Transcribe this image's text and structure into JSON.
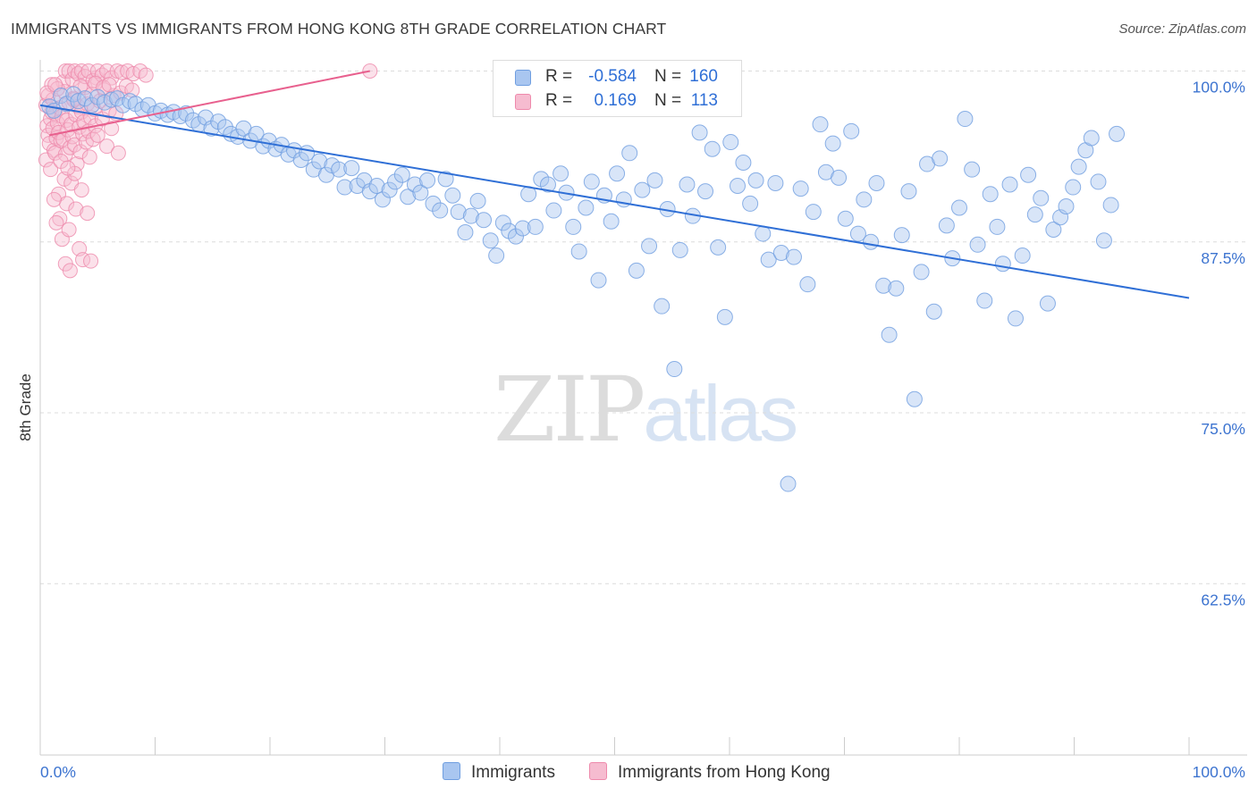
{
  "title": "IMMIGRANTS VS IMMIGRANTS FROM HONG KONG 8TH GRADE CORRELATION CHART",
  "source": "Source: ZipAtlas.com",
  "watermark": {
    "part1": "ZIP",
    "part2": "atlas"
  },
  "colors": {
    "blue_fill": "#a9c6f0",
    "blue_stroke": "#6f9ee0",
    "blue_line": "#2f6fd6",
    "pink_fill": "#f6bcd0",
    "pink_stroke": "#ee89ab",
    "pink_line": "#e8608e",
    "tick_text": "#3d74d0",
    "grid": "#dcdcdc"
  },
  "legend": {
    "rows": [
      {
        "r_label": "R =",
        "r_value": "-0.584",
        "n_label": "N =",
        "n_value": "160"
      },
      {
        "r_label": "R =",
        "r_value": "0.169",
        "n_label": "N =",
        "n_value": "113"
      }
    ]
  },
  "bottom_legend": [
    "Immigrants",
    "Immigrants from Hong Kong"
  ],
  "chart_data": {
    "type": "scatter",
    "xlabel": "",
    "ylabel": "8th Grade",
    "xlim": [
      0,
      100
    ],
    "ylim": [
      50,
      100
    ],
    "x_tick_labels": [
      "0.0%",
      "100.0%"
    ],
    "y_ticks": [
      100,
      87.5,
      75,
      62.5
    ],
    "y_tick_labels": [
      "100.0%",
      "87.5%",
      "75.0%",
      "62.5%"
    ],
    "series": [
      {
        "name": "Immigrants",
        "color": "#a9c6f0",
        "r": -0.584,
        "n": 160,
        "trendline": {
          "x": [
            0,
            100
          ],
          "y": [
            97.5,
            83.4
          ]
        },
        "points": [
          [
            0.8,
            97.4
          ],
          [
            1.2,
            97.1
          ],
          [
            1.8,
            98.2
          ],
          [
            2.3,
            97.6
          ],
          [
            2.9,
            98.3
          ],
          [
            3.3,
            97.8
          ],
          [
            3.9,
            98.0
          ],
          [
            4.5,
            97.5
          ],
          [
            5.0,
            98.1
          ],
          [
            5.6,
            97.7
          ],
          [
            6.2,
            97.9
          ],
          [
            6.7,
            98.0
          ],
          [
            7.2,
            97.5
          ],
          [
            7.8,
            97.8
          ],
          [
            8.3,
            97.6
          ],
          [
            8.9,
            97.2
          ],
          [
            9.4,
            97.5
          ],
          [
            10.0,
            96.9
          ],
          [
            10.5,
            97.1
          ],
          [
            11.1,
            96.8
          ],
          [
            11.6,
            97.0
          ],
          [
            12.2,
            96.7
          ],
          [
            12.7,
            96.9
          ],
          [
            13.3,
            96.4
          ],
          [
            13.8,
            96.1
          ],
          [
            14.4,
            96.6
          ],
          [
            14.9,
            95.8
          ],
          [
            15.5,
            96.3
          ],
          [
            16.1,
            95.9
          ],
          [
            16.6,
            95.4
          ],
          [
            17.2,
            95.2
          ],
          [
            17.7,
            95.8
          ],
          [
            18.3,
            94.9
          ],
          [
            18.8,
            95.4
          ],
          [
            19.4,
            94.5
          ],
          [
            19.9,
            94.9
          ],
          [
            20.5,
            94.3
          ],
          [
            21.0,
            94.6
          ],
          [
            21.6,
            93.9
          ],
          [
            22.1,
            94.2
          ],
          [
            22.7,
            93.5
          ],
          [
            23.2,
            94.0
          ],
          [
            23.8,
            92.8
          ],
          [
            24.3,
            93.4
          ],
          [
            24.9,
            92.4
          ],
          [
            25.4,
            93.1
          ],
          [
            26.0,
            92.8
          ],
          [
            26.5,
            91.5
          ],
          [
            27.1,
            92.9
          ],
          [
            27.6,
            91.6
          ],
          [
            28.2,
            92.0
          ],
          [
            28.7,
            91.2
          ],
          [
            29.3,
            91.6
          ],
          [
            29.8,
            90.6
          ],
          [
            30.4,
            91.3
          ],
          [
            30.9,
            91.9
          ],
          [
            31.5,
            92.4
          ],
          [
            32.0,
            90.8
          ],
          [
            32.6,
            91.7
          ],
          [
            33.1,
            91.1
          ],
          [
            33.7,
            92.0
          ],
          [
            34.2,
            90.3
          ],
          [
            34.8,
            89.8
          ],
          [
            35.3,
            92.1
          ],
          [
            35.9,
            90.9
          ],
          [
            36.4,
            89.7
          ],
          [
            37.0,
            88.2
          ],
          [
            37.5,
            89.4
          ],
          [
            38.1,
            90.5
          ],
          [
            38.6,
            89.1
          ],
          [
            39.2,
            87.6
          ],
          [
            39.7,
            86.5
          ],
          [
            40.3,
            88.9
          ],
          [
            40.8,
            88.3
          ],
          [
            41.4,
            87.9
          ],
          [
            42.0,
            88.5
          ],
          [
            42.5,
            91.0
          ],
          [
            43.1,
            88.6
          ],
          [
            43.6,
            92.1
          ],
          [
            44.2,
            91.7
          ],
          [
            44.7,
            89.8
          ],
          [
            45.3,
            92.5
          ],
          [
            45.8,
            91.1
          ],
          [
            46.4,
            88.6
          ],
          [
            46.9,
            86.8
          ],
          [
            47.5,
            90.0
          ],
          [
            48.0,
            91.9
          ],
          [
            48.6,
            84.7
          ],
          [
            49.1,
            90.9
          ],
          [
            49.7,
            89.0
          ],
          [
            50.2,
            92.5
          ],
          [
            50.8,
            90.6
          ],
          [
            51.3,
            94.0
          ],
          [
            51.9,
            85.4
          ],
          [
            52.4,
            91.3
          ],
          [
            53.0,
            87.2
          ],
          [
            53.5,
            92.0
          ],
          [
            54.1,
            82.8
          ],
          [
            54.6,
            89.9
          ],
          [
            55.2,
            78.2
          ],
          [
            55.7,
            86.9
          ],
          [
            56.3,
            91.7
          ],
          [
            56.8,
            89.4
          ],
          [
            57.4,
            95.5
          ],
          [
            57.9,
            91.2
          ],
          [
            58.5,
            94.3
          ],
          [
            59.0,
            87.1
          ],
          [
            59.6,
            82.0
          ],
          [
            60.1,
            94.8
          ],
          [
            60.7,
            91.6
          ],
          [
            61.2,
            93.3
          ],
          [
            61.8,
            90.3
          ],
          [
            62.3,
            92.0
          ],
          [
            62.9,
            88.1
          ],
          [
            63.4,
            86.2
          ],
          [
            64.0,
            91.8
          ],
          [
            64.5,
            86.7
          ],
          [
            65.1,
            69.8
          ],
          [
            65.6,
            86.4
          ],
          [
            66.2,
            91.4
          ],
          [
            66.8,
            84.4
          ],
          [
            67.3,
            89.7
          ],
          [
            67.9,
            96.1
          ],
          [
            68.4,
            92.6
          ],
          [
            69.0,
            94.7
          ],
          [
            69.5,
            92.2
          ],
          [
            70.1,
            89.2
          ],
          [
            70.6,
            95.6
          ],
          [
            71.2,
            88.1
          ],
          [
            71.7,
            90.6
          ],
          [
            72.3,
            87.5
          ],
          [
            72.8,
            91.8
          ],
          [
            73.4,
            84.3
          ],
          [
            73.9,
            80.7
          ],
          [
            74.5,
            84.1
          ],
          [
            75.0,
            88.0
          ],
          [
            75.6,
            91.2
          ],
          [
            76.1,
            76.0
          ],
          [
            76.7,
            85.3
          ],
          [
            77.2,
            93.2
          ],
          [
            77.8,
            82.4
          ],
          [
            78.3,
            93.6
          ],
          [
            78.9,
            88.7
          ],
          [
            79.4,
            86.3
          ],
          [
            80.0,
            90.0
          ],
          [
            80.5,
            96.5
          ],
          [
            81.1,
            92.8
          ],
          [
            81.6,
            87.3
          ],
          [
            82.2,
            83.2
          ],
          [
            82.7,
            91.0
          ],
          [
            83.3,
            88.6
          ],
          [
            83.8,
            85.9
          ],
          [
            84.4,
            91.7
          ],
          [
            84.9,
            81.9
          ],
          [
            85.5,
            86.5
          ],
          [
            86.0,
            92.4
          ],
          [
            86.6,
            89.5
          ],
          [
            87.1,
            90.7
          ],
          [
            87.7,
            83.0
          ],
          [
            88.2,
            88.4
          ],
          [
            88.8,
            89.3
          ],
          [
            89.3,
            90.1
          ],
          [
            89.9,
            91.5
          ],
          [
            90.4,
            93.0
          ],
          [
            91.0,
            94.2
          ],
          [
            91.5,
            95.1
          ],
          [
            92.1,
            91.9
          ],
          [
            92.6,
            87.6
          ],
          [
            93.2,
            90.2
          ],
          [
            93.7,
            95.4
          ]
        ]
      },
      {
        "name": "Immigrants from Hong Kong",
        "color": "#f6bcd0",
        "r": 0.169,
        "n": 113,
        "trendline": {
          "x": [
            0.8,
            28.7
          ],
          "y": [
            95.3,
            100.0
          ]
        },
        "points": [
          [
            0.5,
            97.5
          ],
          [
            0.6,
            96.0
          ],
          [
            0.7,
            95.3
          ],
          [
            0.8,
            94.7
          ],
          [
            0.9,
            96.5
          ],
          [
            1.0,
            97.0
          ],
          [
            1.1,
            95.8
          ],
          [
            1.2,
            94.2
          ],
          [
            1.3,
            96.9
          ],
          [
            1.4,
            95.1
          ],
          [
            0.5,
            93.5
          ],
          [
            0.7,
            98.2
          ],
          [
            0.9,
            92.8
          ],
          [
            1.1,
            97.9
          ],
          [
            1.3,
            94.0
          ],
          [
            1.5,
            96.2
          ],
          [
            1.6,
            95.5
          ],
          [
            1.7,
            97.3
          ],
          [
            1.8,
            94.9
          ],
          [
            1.9,
            96.7
          ],
          [
            2.0,
            95.0
          ],
          [
            2.1,
            98.5
          ],
          [
            2.2,
            93.9
          ],
          [
            2.3,
            96.4
          ],
          [
            2.4,
            95.7
          ],
          [
            2.5,
            97.7
          ],
          [
            2.6,
            94.4
          ],
          [
            2.7,
            96.1
          ],
          [
            2.8,
            95.2
          ],
          [
            2.9,
            98.0
          ],
          [
            3.0,
            94.6
          ],
          [
            3.1,
            96.8
          ],
          [
            3.2,
            93.2
          ],
          [
            3.3,
            97.4
          ],
          [
            3.4,
            95.9
          ],
          [
            3.5,
            94.1
          ],
          [
            3.6,
            97.0
          ],
          [
            3.7,
            95.4
          ],
          [
            3.8,
            96.3
          ],
          [
            3.9,
            98.8
          ],
          [
            4.0,
            94.8
          ],
          [
            4.1,
            97.6
          ],
          [
            4.2,
            95.6
          ],
          [
            4.3,
            93.7
          ],
          [
            4.4,
            96.6
          ],
          [
            4.5,
            98.3
          ],
          [
            4.6,
            95.0
          ],
          [
            4.7,
            97.2
          ],
          [
            4.8,
            96.0
          ],
          [
            4.9,
            99.5
          ],
          [
            1.6,
            91.0
          ],
          [
            1.7,
            89.2
          ],
          [
            1.9,
            87.7
          ],
          [
            2.1,
            92.1
          ],
          [
            2.3,
            90.3
          ],
          [
            2.5,
            88.4
          ],
          [
            2.7,
            91.8
          ],
          [
            3.1,
            89.9
          ],
          [
            3.4,
            87.0
          ],
          [
            3.7,
            86.2
          ],
          [
            1.2,
            90.6
          ],
          [
            1.4,
            88.9
          ],
          [
            2.2,
            85.9
          ],
          [
            2.6,
            85.4
          ],
          [
            3.0,
            92.5
          ],
          [
            3.6,
            91.3
          ],
          [
            4.1,
            89.6
          ],
          [
            4.4,
            86.1
          ],
          [
            1.8,
            93.4
          ],
          [
            2.4,
            92.9
          ],
          [
            5.0,
            95.3
          ],
          [
            5.2,
            97.8
          ],
          [
            5.4,
            96.5
          ],
          [
            5.6,
            98.6
          ],
          [
            5.8,
            94.5
          ],
          [
            6.0,
            97.1
          ],
          [
            6.2,
            95.8
          ],
          [
            6.4,
            98.2
          ],
          [
            6.6,
            96.9
          ],
          [
            6.8,
            94.0
          ],
          [
            2.0,
            99.2
          ],
          [
            2.2,
            100.0
          ],
          [
            2.5,
            100.0
          ],
          [
            2.8,
            99.4
          ],
          [
            3.0,
            100.0
          ],
          [
            3.3,
            99.8
          ],
          [
            3.6,
            100.0
          ],
          [
            3.9,
            99.6
          ],
          [
            4.2,
            100.0
          ],
          [
            4.6,
            99.3
          ],
          [
            5.0,
            100.0
          ],
          [
            5.4,
            99.7
          ],
          [
            5.8,
            100.0
          ],
          [
            6.2,
            99.5
          ],
          [
            6.7,
            100.0
          ],
          [
            7.1,
            99.9
          ],
          [
            7.6,
            100.0
          ],
          [
            8.1,
            99.8
          ],
          [
            8.7,
            100.0
          ],
          [
            9.2,
            99.7
          ],
          [
            1.0,
            99.0
          ],
          [
            1.5,
            98.7
          ],
          [
            2.9,
            97.9
          ],
          [
            3.5,
            98.9
          ],
          [
            4.8,
            99.1
          ],
          [
            5.5,
            98.8
          ],
          [
            6.0,
            99.0
          ],
          [
            7.0,
            98.4
          ],
          [
            7.5,
            98.9
          ],
          [
            8.0,
            98.6
          ],
          [
            28.7,
            100.0
          ],
          [
            0.6,
            98.4
          ],
          [
            1.3,
            99.0
          ]
        ]
      }
    ]
  }
}
